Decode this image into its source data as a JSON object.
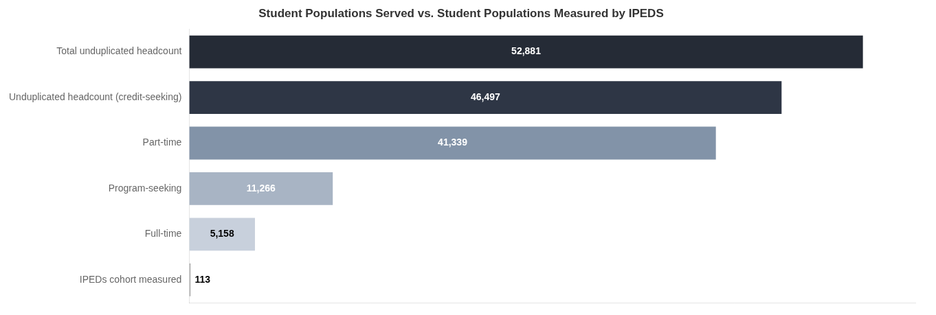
{
  "chart_data": {
    "type": "bar",
    "orientation": "horizontal",
    "title": "Student Populations Served vs. Student Populations Measured by IPEDS",
    "categories": [
      "Total unduplicated headcount",
      "Unduplicated headcount (credit-seeking)",
      "Part-time",
      "Program-seeking",
      "Full-time",
      "IPEDs cohort measured"
    ],
    "values": [
      52881,
      46497,
      41339,
      11266,
      5158,
      113
    ],
    "value_labels": [
      "52,881",
      "46,497",
      "41,339",
      "11,266",
      "5,158",
      "113"
    ],
    "colors": [
      "#252b36",
      "#2e3645",
      "#8293a8",
      "#a8b4c4",
      "#c8d0dc",
      "#ffffff"
    ],
    "xlim": [
      0,
      57000
    ],
    "grid": false,
    "data_labels": true,
    "tick_labels": "y"
  }
}
